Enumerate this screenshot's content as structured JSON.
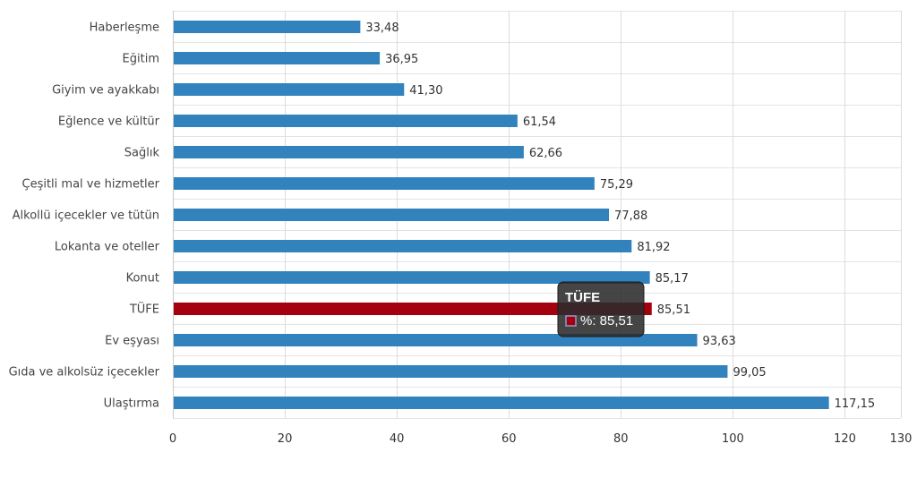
{
  "chart_data": {
    "type": "bar",
    "orientation": "horizontal",
    "categories": [
      "Haberleşme",
      "Eğitim",
      "Giyim ve ayakkabı",
      "Eğlence ve kültür",
      "Sağlık",
      "Çeşitli mal ve hizmetler",
      "Alkollü içecekler ve tütün",
      "Lokanta ve oteller",
      "Konut",
      "TÜFE",
      "Ev eşyası",
      "Gıda ve alkolsüz içecekler",
      "Ulaştırma"
    ],
    "values": [
      33.48,
      36.95,
      41.3,
      61.54,
      62.66,
      75.29,
      77.88,
      81.92,
      85.17,
      85.51,
      93.63,
      99.05,
      117.15
    ],
    "value_labels": [
      "33,48",
      "36,95",
      "41,30",
      "61,54",
      "62,66",
      "75,29",
      "77,88",
      "81,92",
      "85,17",
      "85,51",
      "93,63",
      "99,05",
      "117,15"
    ],
    "highlight_category": "TÜFE",
    "bar_color": "#3182bd",
    "highlight_color": "#a50010",
    "xlim": [
      0,
      130
    ],
    "x_ticks": [
      0,
      20,
      40,
      60,
      80,
      100,
      120,
      130
    ],
    "grid": true,
    "title": "",
    "xlabel": "",
    "ylabel": "",
    "tooltip": {
      "title": "TÜFE",
      "text": "%: 85,51"
    }
  }
}
